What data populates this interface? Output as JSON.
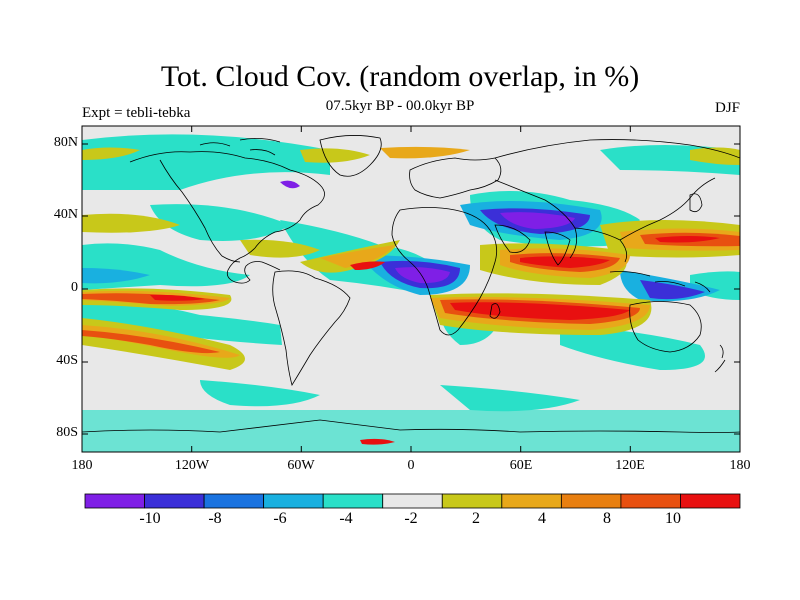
{
  "title": "Tot. Cloud Cov. (random overlap, in %)",
  "subtitle": "07.5kyr BP - 00.0kyr BP",
  "left_label": "Expt = tebli-tebka",
  "right_label": "DJF",
  "lat_labels": [
    "80N",
    "40N",
    "0",
    "40S",
    "80S"
  ],
  "lon_labels": [
    "180",
    "120W",
    "60W",
    "0",
    "60E",
    "120E",
    "180"
  ],
  "colorbar": {
    "colors": [
      "#7f1fe6",
      "#3b2fd8",
      "#1a73e0",
      "#19b0e0",
      "#2ae0c8",
      "#e8e8e8",
      "#c8c81a",
      "#e8a81a",
      "#e87f10",
      "#e85010",
      "#e81010"
    ],
    "labels": [
      "-10",
      "-8",
      "-6",
      "-4",
      "-2",
      "2",
      "4",
      "8",
      "10"
    ]
  }
}
